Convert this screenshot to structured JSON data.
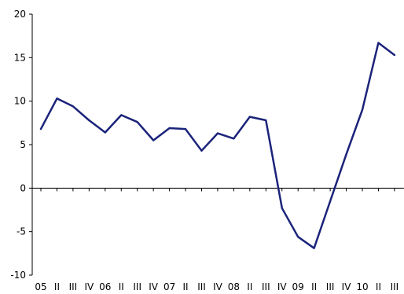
{
  "chart_data": {
    "type": "line",
    "title": "",
    "xlabel": "",
    "ylabel": "",
    "ylim": [
      -10,
      20
    ],
    "yticks": [
      -10,
      -5,
      0,
      5,
      10,
      15,
      20
    ],
    "grid": false,
    "categories": [
      "05",
      "II",
      "III",
      "IV",
      "06",
      "II",
      "III",
      "IV",
      "07",
      "II",
      "III",
      "IV",
      "08",
      "II",
      "III",
      "IV",
      "09",
      "II",
      "III",
      "IV",
      "10",
      "II",
      "III"
    ],
    "series": [
      {
        "color": "#1b237a",
        "values": [
          6.8,
          10.3,
          9.4,
          7.8,
          6.4,
          8.4,
          7.6,
          5.5,
          6.9,
          6.8,
          4.3,
          6.3,
          5.7,
          8.2,
          7.8,
          -2.3,
          -5.6,
          -6.9,
          -1.5,
          3.9,
          9.0,
          16.7,
          15.3
        ]
      }
    ]
  }
}
